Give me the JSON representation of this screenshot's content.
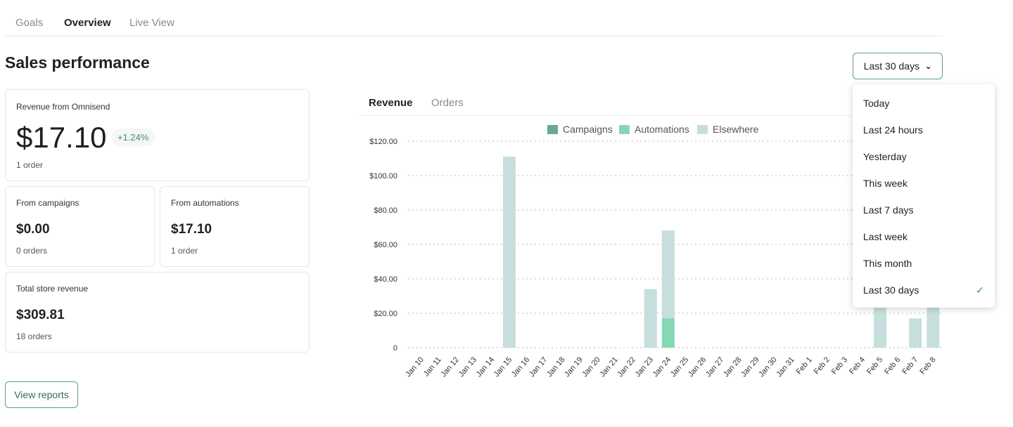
{
  "tabs": [
    {
      "label": "Goals"
    },
    {
      "label": "Overview"
    },
    {
      "label": "Live View"
    }
  ],
  "title": "Sales performance",
  "range_select": {
    "value": "Last 30 days"
  },
  "cards": {
    "omnisend": {
      "label": "Revenue from Omnisend",
      "value": "$17.10",
      "change": "+1.24%",
      "orders": "1 order"
    },
    "campaigns": {
      "label": "From campaigns",
      "value": "$0.00",
      "orders": "0 orders"
    },
    "automations": {
      "label": "From automations",
      "value": "$17.10",
      "orders": "1 order"
    },
    "total": {
      "label": "Total store revenue",
      "value": "$309.81",
      "orders": "18 orders"
    }
  },
  "view_reports": "View reports",
  "chart_tabs": [
    {
      "label": "Revenue"
    },
    {
      "label": "Orders"
    }
  ],
  "menu": {
    "items": [
      "Today",
      "Last 24 hours",
      "Yesterday",
      "This week",
      "Last 7 days",
      "Last week",
      "This month",
      "Last 30 days"
    ],
    "selected": "Last 30 days"
  },
  "colors": {
    "campaigns": "#6aaa8e",
    "automations": "#86d8b4",
    "elsewhere": "#c7dedd",
    "accent": "#3f8f74"
  },
  "chart_data": {
    "type": "bar",
    "stacked": true,
    "categories": [
      "Jan 10",
      "Jan 11",
      "Jan 12",
      "Jan 13",
      "Jan 14",
      "Jan 15",
      "Jan 16",
      "Jan 17",
      "Jan 18",
      "Jan 19",
      "Jan 20",
      "Jan 21",
      "Jan 22",
      "Jan 23",
      "Jan 24",
      "Jan 25",
      "Jan 26",
      "Jan 27",
      "Jan 28",
      "Jan 29",
      "Jan 30",
      "Jan 31",
      "Feb 1",
      "Feb 2",
      "Feb 3",
      "Feb 4",
      "Feb 5",
      "Feb 6",
      "Feb 7",
      "Feb 8"
    ],
    "series": [
      {
        "name": "Campaigns",
        "values": [
          0,
          0,
          0,
          0,
          0,
          0,
          0,
          0,
          0,
          0,
          0,
          0,
          0,
          0,
          0,
          0,
          0,
          0,
          0,
          0,
          0,
          0,
          0,
          0,
          0,
          0,
          0,
          0,
          0,
          0
        ]
      },
      {
        "name": "Automations",
        "values": [
          0,
          0,
          0,
          0,
          0,
          0,
          0,
          0,
          0,
          0,
          0,
          0,
          0,
          0,
          17.1,
          0,
          0,
          0,
          0,
          0,
          0,
          0,
          0,
          0,
          0,
          0,
          0,
          0,
          0,
          0
        ]
      },
      {
        "name": "Elsewhere",
        "values": [
          0,
          0,
          0,
          0,
          0,
          111,
          0,
          0,
          0,
          0,
          0,
          0,
          0,
          34,
          51,
          0,
          0,
          0,
          0,
          0,
          0,
          0,
          0,
          0,
          0,
          0,
          40,
          0,
          17,
          39.7
        ]
      }
    ],
    "yticks": [
      "0",
      "$20.00",
      "$40.00",
      "$60.00",
      "$80.00",
      "$100.00",
      "$120.00"
    ],
    "ylim": [
      0,
      120
    ],
    "grid": true,
    "legend": "top"
  }
}
